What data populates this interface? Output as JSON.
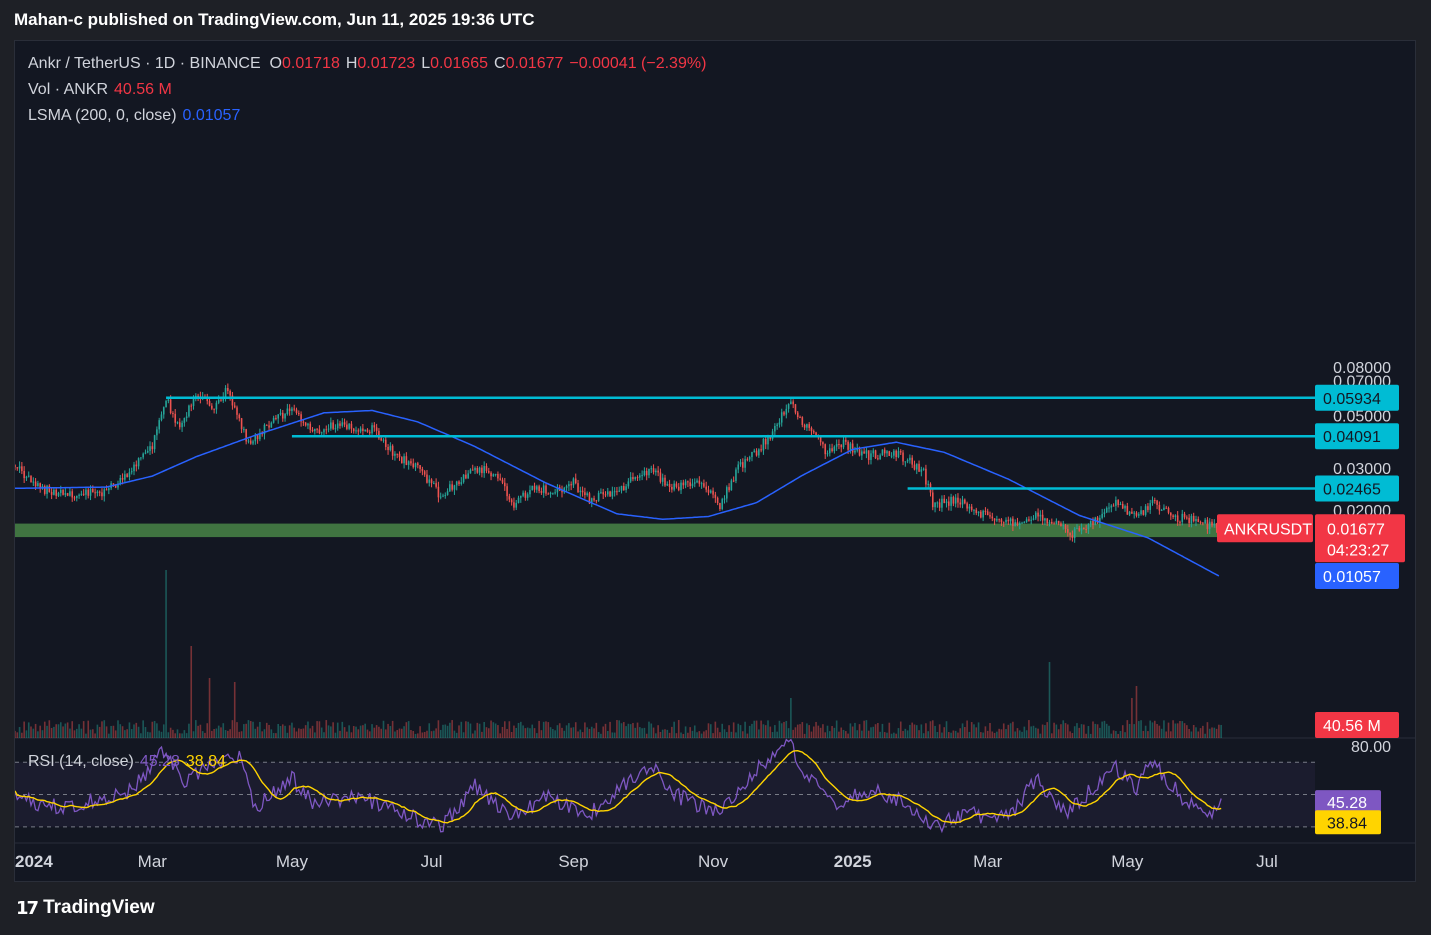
{
  "header": {
    "published_line": "Mahan-c published on TradingView.com, Jun 11, 2025 19:36 UTC"
  },
  "legend": {
    "symbol": "Ankr / TetherUS · 1D · BINANCE",
    "o_label": "O",
    "o_value": "0.01718",
    "h_label": "H",
    "h_value": "0.01723",
    "l_label": "L",
    "l_value": "0.01665",
    "c_label": "C",
    "c_value": "0.01677",
    "change": "−0.00041 (−2.39%)",
    "vol_label": "Vol · ANKR",
    "vol_value": "40.56 M",
    "lsma_label": "LSMA (200, 0, close)",
    "lsma_value": "0.01057",
    "rsi_label": "RSI (14, close)",
    "rsi_value1": "45.28",
    "rsi_value2": "38.84"
  },
  "footer": {
    "brand": "TradingView",
    "logo_glyph": "17"
  },
  "colors": {
    "background": "#131722",
    "up": "#26a69a",
    "down": "#ef5350",
    "lsma": "#2962ff",
    "level_line": "#00bcd4",
    "support_zone": "#4c8c4a",
    "rsi_line": "#7e57c2",
    "rsi_ma": "#ffd400"
  },
  "chart_data": {
    "type": "candlestick",
    "symbol": "ANKRUSDT",
    "interval": "1D",
    "exchange": "BINANCE",
    "x_range": [
      "2024-01-01",
      "2025-07-22"
    ],
    "y_scale": "log",
    "price_ticks": [
      "0.08000",
      "0.07000",
      "0.05000",
      "0.03000",
      "0.02000"
    ],
    "x_ticks": [
      "2024",
      "Mar",
      "May",
      "Jul",
      "Sep",
      "Nov",
      "2025",
      "Mar",
      "May",
      "Jul"
    ],
    "x_tick_dates": [
      "2024-01-01",
      "2024-03-01",
      "2024-05-01",
      "2024-07-01",
      "2024-09-01",
      "2024-11-01",
      "2025-01-01",
      "2025-03-01",
      "2025-05-01",
      "2025-07-01"
    ],
    "anchors": [
      [
        "2024-01-01",
        0.031
      ],
      [
        "2024-01-10",
        0.025
      ],
      [
        "2024-01-25",
        0.023
      ],
      [
        "2024-02-10",
        0.024
      ],
      [
        "2024-02-20",
        0.029
      ],
      [
        "2024-03-01",
        0.037
      ],
      [
        "2024-03-07",
        0.059
      ],
      [
        "2024-03-13",
        0.043
      ],
      [
        "2024-03-20",
        0.063
      ],
      [
        "2024-03-27",
        0.054
      ],
      [
        "2024-04-03",
        0.064
      ],
      [
        "2024-04-12",
        0.038
      ],
      [
        "2024-04-22",
        0.047
      ],
      [
        "2024-05-01",
        0.053
      ],
      [
        "2024-05-10",
        0.042
      ],
      [
        "2024-05-20",
        0.046
      ],
      [
        "2024-05-30",
        0.043
      ],
      [
        "2024-06-05",
        0.044
      ],
      [
        "2024-06-15",
        0.034
      ],
      [
        "2024-06-25",
        0.03
      ],
      [
        "2024-07-05",
        0.023
      ],
      [
        "2024-07-15",
        0.028
      ],
      [
        "2024-07-22",
        0.03
      ],
      [
        "2024-08-01",
        0.027
      ],
      [
        "2024-08-05",
        0.021
      ],
      [
        "2024-08-15",
        0.025
      ],
      [
        "2024-08-25",
        0.024
      ],
      [
        "2024-09-01",
        0.026
      ],
      [
        "2024-09-08",
        0.022
      ],
      [
        "2024-09-20",
        0.024
      ],
      [
        "2024-09-28",
        0.028
      ],
      [
        "2024-10-05",
        0.029
      ],
      [
        "2024-10-15",
        0.025
      ],
      [
        "2024-10-25",
        0.027
      ],
      [
        "2024-11-04",
        0.021
      ],
      [
        "2024-11-12",
        0.03
      ],
      [
        "2024-11-20",
        0.035
      ],
      [
        "2024-11-28",
        0.044
      ],
      [
        "2024-12-05",
        0.058
      ],
      [
        "2024-12-10",
        0.045
      ],
      [
        "2024-12-15",
        0.043
      ],
      [
        "2024-12-20",
        0.035
      ],
      [
        "2024-12-28",
        0.038
      ],
      [
        "2025-01-08",
        0.034
      ],
      [
        "2025-01-20",
        0.035
      ],
      [
        "2025-02-01",
        0.029
      ],
      [
        "2025-02-05",
        0.021
      ],
      [
        "2025-02-15",
        0.022
      ],
      [
        "2025-02-28",
        0.019
      ],
      [
        "2025-03-10",
        0.0175
      ],
      [
        "2025-03-20",
        0.019
      ],
      [
        "2025-03-28",
        0.018
      ],
      [
        "2025-04-07",
        0.0158
      ],
      [
        "2025-04-20",
        0.019
      ],
      [
        "2025-04-25",
        0.0215
      ],
      [
        "2025-05-05",
        0.0185
      ],
      [
        "2025-05-12",
        0.0215
      ],
      [
        "2025-05-20",
        0.019
      ],
      [
        "2025-06-01",
        0.0178
      ],
      [
        "2025-06-11",
        0.01677
      ]
    ],
    "lsma_anchors": [
      [
        "2024-01-01",
        0.0247
      ],
      [
        "2024-02-10",
        0.025
      ],
      [
        "2024-03-01",
        0.0278
      ],
      [
        "2024-03-20",
        0.0335
      ],
      [
        "2024-04-15",
        0.0413
      ],
      [
        "2024-05-15",
        0.0513
      ],
      [
        "2024-06-05",
        0.0525
      ],
      [
        "2024-06-25",
        0.047
      ],
      [
        "2024-07-20",
        0.037
      ],
      [
        "2024-08-20",
        0.026
      ],
      [
        "2024-09-20",
        0.0193
      ],
      [
        "2024-10-10",
        0.0183
      ],
      [
        "2024-10-30",
        0.0188
      ],
      [
        "2024-11-20",
        0.0215
      ],
      [
        "2024-12-10",
        0.028
      ],
      [
        "2025-01-01",
        0.036
      ],
      [
        "2025-01-20",
        0.0386
      ],
      [
        "2025-02-10",
        0.035
      ],
      [
        "2025-03-10",
        0.027
      ],
      [
        "2025-04-10",
        0.019
      ],
      [
        "2025-05-10",
        0.0153
      ],
      [
        "2025-06-10",
        0.01057
      ]
    ],
    "rsi_anchors": [
      [
        "2024-01-01",
        52
      ],
      [
        "2024-01-15",
        42
      ],
      [
        "2024-02-01",
        45
      ],
      [
        "2024-02-20",
        52
      ],
      [
        "2024-03-07",
        78
      ],
      [
        "2024-03-15",
        55
      ],
      [
        "2024-03-25",
        68
      ],
      [
        "2024-04-08",
        72
      ],
      [
        "2024-04-15",
        42
      ],
      [
        "2024-05-01",
        60
      ],
      [
        "2024-05-10",
        45
      ],
      [
        "2024-06-01",
        48
      ],
      [
        "2024-06-15",
        40
      ],
      [
        "2024-07-05",
        30
      ],
      [
        "2024-07-20",
        55
      ],
      [
        "2024-08-05",
        36
      ],
      [
        "2024-08-20",
        48
      ],
      [
        "2024-09-08",
        38
      ],
      [
        "2024-09-25",
        58
      ],
      [
        "2024-10-05",
        68
      ],
      [
        "2024-10-15",
        50
      ],
      [
        "2024-11-04",
        38
      ],
      [
        "2024-11-20",
        65
      ],
      [
        "2024-12-05",
        82
      ],
      [
        "2024-12-12",
        60
      ],
      [
        "2024-12-25",
        45
      ],
      [
        "2025-01-10",
        52
      ],
      [
        "2025-01-25",
        44
      ],
      [
        "2025-02-05",
        30
      ],
      [
        "2025-02-20",
        38
      ],
      [
        "2025-03-10",
        35
      ],
      [
        "2025-03-22",
        60
      ],
      [
        "2025-04-05",
        38
      ],
      [
        "2025-04-25",
        68
      ],
      [
        "2025-05-05",
        55
      ],
      [
        "2025-05-12",
        70
      ],
      [
        "2025-05-25",
        48
      ],
      [
        "2025-06-05",
        38
      ],
      [
        "2025-06-11",
        45.28
      ]
    ],
    "levels": [
      {
        "value": "0.05934",
        "from": "2024-03-07"
      },
      {
        "value": "0.04091",
        "from": "2024-05-01"
      },
      {
        "value": "0.02465",
        "from": "2025-01-25"
      }
    ],
    "support_zone": {
      "low": 0.0154,
      "high": 0.01755,
      "from": "2024-01-01",
      "to": "2025-06-26"
    },
    "last_price": {
      "label": "ANKRUSDT",
      "value": "0.01677",
      "countdown": "04:23:27"
    },
    "lsma_last": {
      "value": "0.01057"
    },
    "volume": {
      "last": "40.56 M",
      "spikes": [
        [
          "2024-03-07",
          4.2
        ],
        [
          "2024-03-18",
          2.3
        ],
        [
          "2024-04-06",
          1.4
        ],
        [
          "2024-03-26",
          1.5
        ],
        [
          "2024-12-05",
          1.0
        ],
        [
          "2025-03-28",
          1.9
        ],
        [
          "2025-05-03",
          1.0
        ],
        [
          "2025-05-05",
          1.3
        ]
      ]
    },
    "rsi": {
      "length": 14,
      "source": "close",
      "value": "45.28",
      "ma_value": "38.84",
      "ticks": [
        "80.00"
      ],
      "levels": [
        70,
        50,
        30
      ],
      "ylim": [
        20,
        85
      ]
    }
  }
}
